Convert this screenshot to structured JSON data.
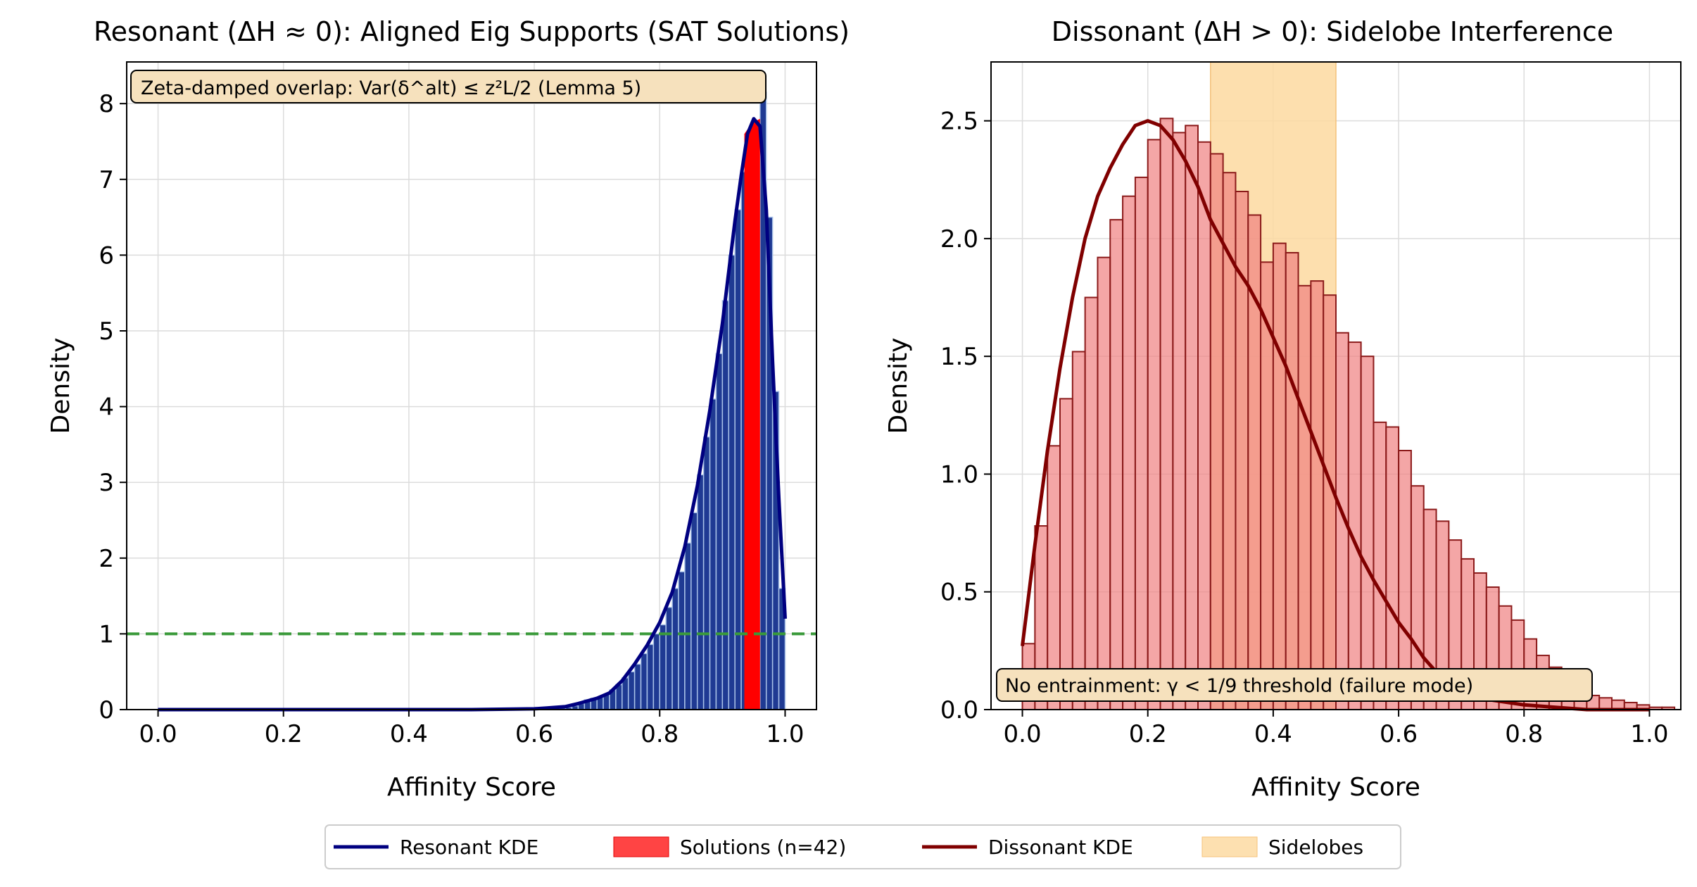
{
  "chart_data": [
    {
      "type": "bar",
      "title": "Resonant (ΔH ≈ 0): Aligned Eig Supports (SAT Solutions)",
      "xlabel": "Affinity Score",
      "ylabel": "Density",
      "xlim": [
        -0.05,
        1.05
      ],
      "ylim": [
        0,
        8.55
      ],
      "xticks": [
        0.0,
        0.2,
        0.4,
        0.6,
        0.8,
        1.0
      ],
      "xtick_labels": [
        "0.0",
        "0.2",
        "0.4",
        "0.6",
        "0.8",
        "1.0"
      ],
      "yticks": [
        0,
        1,
        2,
        3,
        4,
        5,
        6,
        7,
        8
      ],
      "ytick_labels": [
        "0",
        "1",
        "2",
        "3",
        "4",
        "5",
        "6",
        "7",
        "8"
      ],
      "grid": true,
      "bar_color": "#1f3a93",
      "bar_edge": "#a9c2e8",
      "histogram": {
        "bin_width": 0.01,
        "bins": [
          [
            0.62,
            0.01
          ],
          [
            0.63,
            0.02
          ],
          [
            0.64,
            0.02
          ],
          [
            0.65,
            0.03
          ],
          [
            0.66,
            0.05
          ],
          [
            0.67,
            0.08
          ],
          [
            0.68,
            0.13
          ],
          [
            0.69,
            0.15
          ],
          [
            0.7,
            0.16
          ],
          [
            0.71,
            0.2
          ],
          [
            0.72,
            0.26
          ],
          [
            0.73,
            0.33
          ],
          [
            0.74,
            0.42
          ],
          [
            0.75,
            0.5
          ],
          [
            0.76,
            0.6
          ],
          [
            0.77,
            0.74
          ],
          [
            0.78,
            0.86
          ],
          [
            0.79,
            1.0
          ],
          [
            0.8,
            1.12
          ],
          [
            0.81,
            1.35
          ],
          [
            0.82,
            1.6
          ],
          [
            0.83,
            1.82
          ],
          [
            0.84,
            2.2
          ],
          [
            0.85,
            2.6
          ],
          [
            0.86,
            3.1
          ],
          [
            0.87,
            3.6
          ],
          [
            0.88,
            4.1
          ],
          [
            0.89,
            4.7
          ],
          [
            0.9,
            5.4
          ],
          [
            0.91,
            6.0
          ],
          [
            0.92,
            6.6
          ],
          [
            0.93,
            7.1
          ],
          [
            0.94,
            7.5
          ],
          [
            0.95,
            7.7
          ],
          [
            0.96,
            8.15
          ],
          [
            0.97,
            6.5
          ],
          [
            0.98,
            4.2
          ],
          [
            0.99,
            1.6
          ]
        ]
      },
      "solutions_band": {
        "x0": 0.935,
        "x1": 0.96,
        "values": [
          7.6,
          7.75,
          7.8
        ],
        "color": "#ff0000"
      },
      "kde": {
        "name": "Resonant KDE",
        "color": "#000080",
        "x": [
          0.0,
          0.1,
          0.2,
          0.3,
          0.4,
          0.5,
          0.6,
          0.62,
          0.65,
          0.67,
          0.7,
          0.72,
          0.74,
          0.76,
          0.78,
          0.8,
          0.82,
          0.84,
          0.86,
          0.88,
          0.9,
          0.92,
          0.93,
          0.94,
          0.95,
          0.96,
          0.97,
          0.98,
          0.99,
          1.0
        ],
        "y": [
          0.0,
          0.0,
          0.0,
          0.0,
          0.0,
          0.0,
          0.01,
          0.02,
          0.04,
          0.08,
          0.15,
          0.22,
          0.38,
          0.6,
          0.85,
          1.15,
          1.55,
          2.15,
          2.95,
          3.95,
          5.1,
          6.45,
          7.05,
          7.6,
          7.8,
          7.7,
          6.6,
          4.6,
          2.8,
          1.2
        ]
      },
      "reference_line": {
        "y": 1.0,
        "color": "#3a9a3a",
        "style": "dashed"
      },
      "annotation": "Zeta-damped overlap: Var(δ^alt) ≤ z²L/2 (Lemma 5)"
    },
    {
      "type": "bar",
      "title": "Dissonant (ΔH > 0): Sidelobe Interference",
      "xlabel": "Affinity Score",
      "ylabel": "Density",
      "xlim": [
        -0.05,
        1.05
      ],
      "ylim": [
        0,
        2.75
      ],
      "xticks": [
        0.0,
        0.2,
        0.4,
        0.6,
        0.8,
        1.0
      ],
      "xtick_labels": [
        "0.0",
        "0.2",
        "0.4",
        "0.6",
        "0.8",
        "1.0"
      ],
      "yticks": [
        0.0,
        0.5,
        1.0,
        1.5,
        2.0,
        2.5
      ],
      "ytick_labels": [
        "0.0",
        "0.5",
        "1.0",
        "1.5",
        "2.0",
        "2.5"
      ],
      "grid": true,
      "bar_color": "#f08080",
      "bar_edge": "#8b1a1a",
      "histogram": {
        "bin_start": 0.0,
        "bin_width": 0.02,
        "values": [
          0.28,
          0.78,
          1.12,
          1.32,
          1.52,
          1.75,
          1.92,
          2.08,
          2.18,
          2.26,
          2.42,
          2.51,
          2.45,
          2.48,
          2.41,
          2.36,
          2.28,
          2.2,
          2.1,
          1.9,
          1.98,
          1.94,
          1.8,
          1.82,
          1.76,
          1.6,
          1.56,
          1.5,
          1.22,
          1.2,
          1.1,
          0.95,
          0.85,
          0.8,
          0.72,
          0.64,
          0.58,
          0.52,
          0.44,
          0.38,
          0.3,
          0.23,
          0.18,
          0.13,
          0.09,
          0.06,
          0.05,
          0.04,
          0.03,
          0.02,
          0.01,
          0.01,
          0.0,
          0.0,
          0.0,
          0.0
        ]
      },
      "kde": {
        "name": "Dissonant KDE",
        "color": "#800000",
        "x": [
          0.0,
          0.02,
          0.04,
          0.06,
          0.08,
          0.1,
          0.12,
          0.14,
          0.16,
          0.18,
          0.2,
          0.22,
          0.24,
          0.26,
          0.28,
          0.3,
          0.32,
          0.34,
          0.36,
          0.38,
          0.4,
          0.42,
          0.44,
          0.46,
          0.48,
          0.5,
          0.52,
          0.54,
          0.56,
          0.58,
          0.6,
          0.62,
          0.64,
          0.66,
          0.68,
          0.7,
          0.75,
          0.8,
          0.85,
          0.9,
          0.95,
          1.0
        ],
        "y": [
          0.27,
          0.7,
          1.1,
          1.45,
          1.75,
          2.0,
          2.18,
          2.3,
          2.4,
          2.48,
          2.5,
          2.48,
          2.42,
          2.33,
          2.22,
          2.08,
          1.98,
          1.88,
          1.8,
          1.7,
          1.58,
          1.46,
          1.32,
          1.18,
          1.04,
          0.9,
          0.77,
          0.65,
          0.55,
          0.46,
          0.37,
          0.3,
          0.22,
          0.16,
          0.11,
          0.07,
          0.04,
          0.02,
          0.01,
          0.0,
          0.0,
          0.0
        ]
      },
      "sidelobes": {
        "x0": 0.3,
        "x1": 0.5,
        "color": "#fdd9a0"
      },
      "annotation": "No entrainment: γ < 1/9 threshold (failure mode)"
    }
  ],
  "legend": {
    "entries": [
      {
        "label": "Resonant KDE",
        "kind": "line",
        "color": "#000080"
      },
      {
        "label": "Solutions (n=42)",
        "kind": "patch",
        "color": "#ff3030"
      },
      {
        "label": "Dissonant KDE",
        "kind": "line",
        "color": "#800000"
      },
      {
        "label": "Sidelobes",
        "kind": "patch",
        "color": "#fde0b0"
      }
    ]
  }
}
